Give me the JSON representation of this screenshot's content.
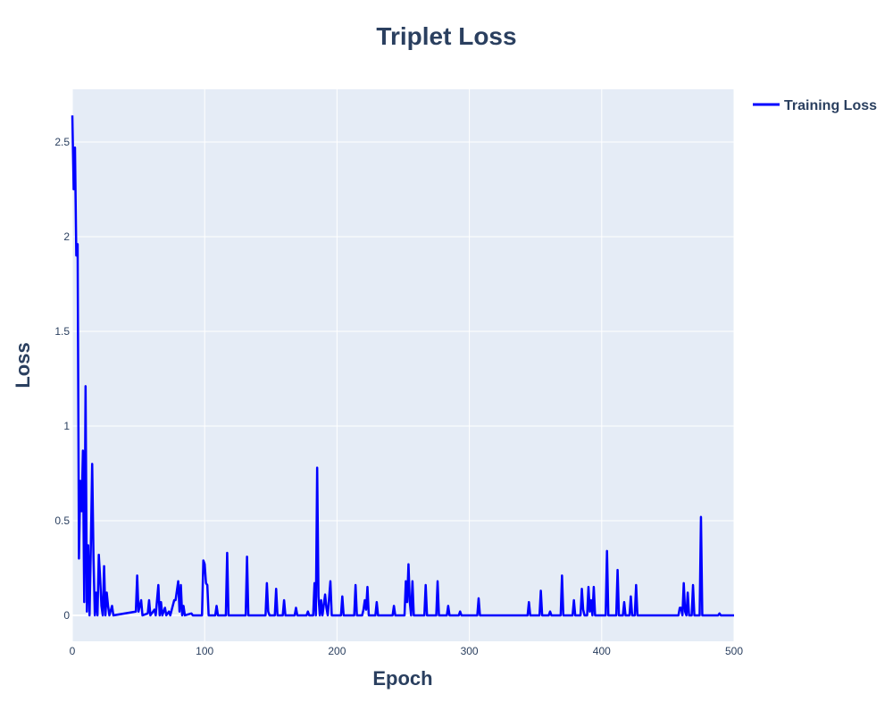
{
  "chart_data": {
    "type": "line",
    "title": "Triplet Loss",
    "x_label": "Epoch",
    "y_label": "Loss",
    "x": [
      0,
      1,
      2,
      3,
      4,
      5,
      6,
      7,
      8,
      9,
      10,
      11,
      12,
      13,
      14,
      15,
      16,
      17,
      18,
      19,
      20,
      21,
      22,
      23,
      24,
      25,
      26,
      27,
      28,
      30,
      31,
      48,
      49,
      50,
      52,
      53,
      57,
      58,
      59,
      62,
      63,
      65,
      66,
      67,
      68,
      70,
      71,
      73,
      74,
      77,
      78,
      80,
      81,
      82,
      83,
      84,
      85,
      90,
      91,
      98,
      99,
      100,
      101,
      102,
      103,
      108,
      109,
      110,
      116,
      117,
      118,
      131,
      132,
      133,
      146,
      147,
      148,
      149,
      153,
      154,
      155,
      159,
      160,
      161,
      168,
      169,
      170,
      177,
      178,
      179,
      182,
      183,
      184,
      185,
      186,
      187,
      188,
      189,
      191,
      192,
      193,
      195,
      196,
      203,
      204,
      205,
      213,
      214,
      215,
      219,
      220,
      221,
      222,
      223,
      224,
      229,
      230,
      231,
      242,
      243,
      244,
      251,
      252,
      253,
      254,
      255,
      256,
      257,
      258,
      266,
      267,
      268,
      275,
      276,
      277,
      283,
      284,
      285,
      292,
      293,
      294,
      306,
      307,
      308,
      344,
      345,
      346,
      353,
      354,
      355,
      360,
      361,
      362,
      369,
      370,
      371,
      378,
      379,
      380,
      384,
      385,
      386,
      387,
      389,
      390,
      391,
      392,
      393,
      394,
      395,
      403,
      404,
      405,
      411,
      412,
      413,
      416,
      417,
      418,
      421,
      422,
      423,
      425,
      426,
      427,
      458,
      459,
      460,
      461,
      462,
      463,
      464,
      465,
      466,
      468,
      469,
      470,
      474,
      475,
      476,
      488,
      489,
      490,
      500
    ],
    "series": [
      {
        "name": "Training Loss",
        "color": "#0000ff",
        "values": [
          2.64,
          2.25,
          2.47,
          1.9,
          1.96,
          0.3,
          0.71,
          0.55,
          0.87,
          0.07,
          1.21,
          0.02,
          0.37,
          0,
          0.37,
          0.8,
          0.3,
          0,
          0.12,
          0,
          0.32,
          0.2,
          0.05,
          0,
          0.26,
          0,
          0.12,
          0.05,
          0,
          0.05,
          0,
          0.02,
          0.21,
          0.02,
          0.08,
          0,
          0.01,
          0.08,
          0,
          0.03,
          0,
          0.16,
          0,
          0.07,
          0,
          0.04,
          0,
          0.02,
          0,
          0.08,
          0.08,
          0.18,
          0.02,
          0.16,
          0,
          0.05,
          0,
          0.01,
          0,
          0,
          0.29,
          0.27,
          0.17,
          0.16,
          0,
          0,
          0.05,
          0,
          0,
          0.33,
          0,
          0,
          0.31,
          0,
          0,
          0.17,
          0.02,
          0,
          0,
          0.14,
          0,
          0,
          0.08,
          0,
          0,
          0.04,
          0,
          0,
          0.02,
          0,
          0,
          0.17,
          0,
          0.78,
          0.1,
          0,
          0.08,
          0,
          0.11,
          0.04,
          0,
          0.18,
          0,
          0,
          0.1,
          0,
          0,
          0.16,
          0,
          0,
          0.03,
          0.08,
          0.03,
          0.15,
          0,
          0,
          0.07,
          0,
          0,
          0.05,
          0,
          0,
          0.18,
          0.07,
          0.27,
          0.07,
          0,
          0.18,
          0,
          0,
          0.16,
          0,
          0,
          0.18,
          0,
          0,
          0.05,
          0,
          0,
          0.02,
          0,
          0,
          0.09,
          0,
          0,
          0.07,
          0,
          0,
          0.13,
          0,
          0,
          0.02,
          0,
          0,
          0.21,
          0,
          0,
          0.08,
          0,
          0,
          0.14,
          0.03,
          0,
          0,
          0.15,
          0.02,
          0.08,
          0,
          0.15,
          0,
          0,
          0.34,
          0,
          0,
          0.24,
          0,
          0,
          0.07,
          0,
          0,
          0.1,
          0,
          0,
          0.16,
          0,
          0,
          0.04,
          0.04,
          0,
          0.17,
          0.02,
          0,
          0.12,
          0,
          0,
          0.16,
          0,
          0,
          0.52,
          0,
          0,
          0.01,
          0,
          0
        ]
      }
    ],
    "xlim": [
      0,
      500
    ],
    "ylim": [
      -0.137,
      2.778
    ],
    "xticks": [
      0,
      100,
      200,
      300,
      400,
      500
    ],
    "yticks": [
      0,
      0.5,
      1,
      1.5,
      2,
      2.5
    ],
    "grid": true,
    "legend_position": "right"
  }
}
